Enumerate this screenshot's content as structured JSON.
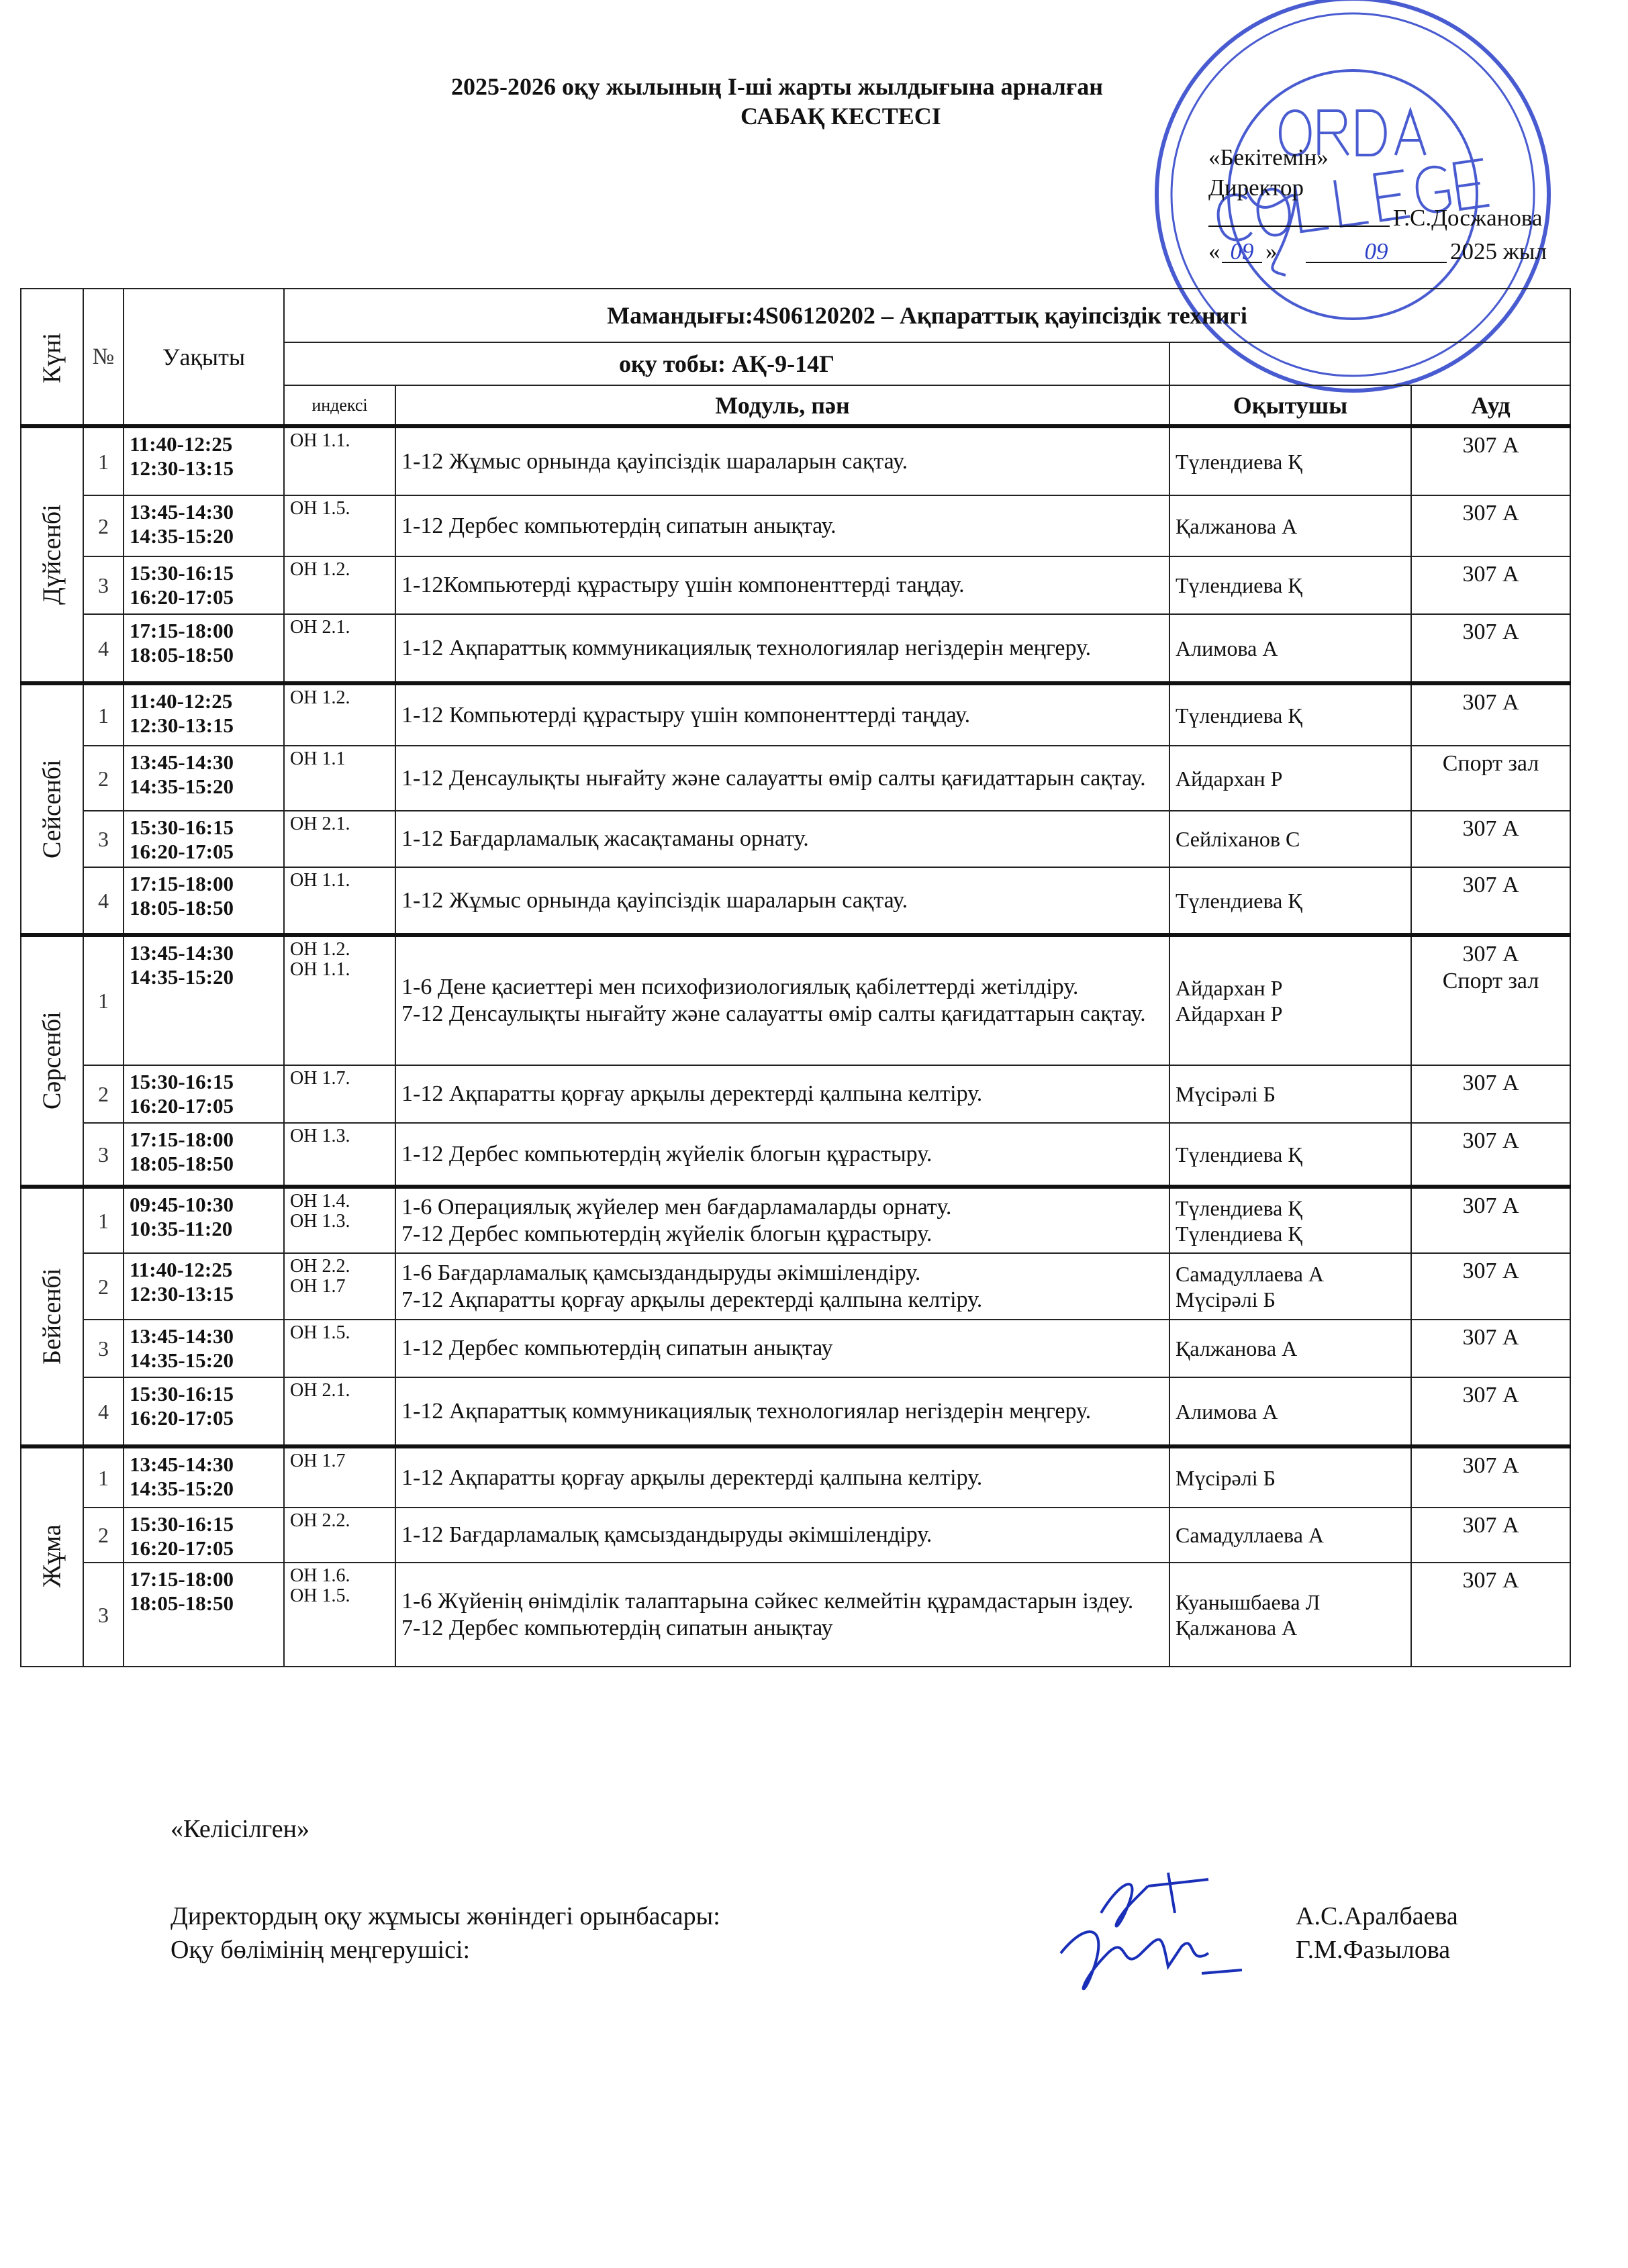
{
  "header": {
    "title_line1": "2025-2026 оқу жылының І-ші  жарты жылдығына арналған",
    "title_line2": "САБАҚ КЕСТЕСІ",
    "approval": {
      "approved": "«Бекітемін»",
      "position": "Директор",
      "name": "Г.С.Досжанова",
      "date_open": "«",
      "date_close": "»",
      "date_day": "09",
      "date_month": "09",
      "year": "2025 жыл"
    },
    "stamp_text": "ORDA COLLEGE",
    "stamp_color": "#2a3fc8"
  },
  "table": {
    "col_day": "Күні",
    "col_num": "№",
    "col_time": "Уақыты",
    "specialty": "Мамандығы:4S06120202 – Ақпараттық қауіпсіздік технигі",
    "group": "оқу тобы:  АҚ-9-14Г",
    "col_index": "индексі",
    "col_module": "Модуль, пән",
    "col_teacher": "Оқытушы",
    "col_room": "Ауд",
    "days": [
      {
        "name": "Дүйсенбі",
        "lessons": [
          {
            "n": "1",
            "time": [
              "11:40-12:25",
              "12:30-13:15"
            ],
            "index": [
              "ОН 1.1."
            ],
            "subject": [
              "1-12 Жұмыс орнында қауіпсіздік шараларын сақтау."
            ],
            "teacher": [
              "Түлендиева Қ"
            ],
            "room": [
              "307 А"
            ]
          },
          {
            "n": "2",
            "time": [
              "13:45-14:30",
              "14:35-15:20"
            ],
            "index": [
              "ОН 1.5."
            ],
            "subject": [
              "1-12 Дербес компьютердің сипатын анықтау."
            ],
            "teacher": [
              "Қалжанова А"
            ],
            "room": [
              "307 А"
            ]
          },
          {
            "n": "3",
            "time": [
              "15:30-16:15",
              "16:20-17:05"
            ],
            "index": [
              "ОН 1.2."
            ],
            "subject": [
              "1-12Компьютерді құрастыру үшін компоненттерді таңдау."
            ],
            "teacher": [
              "Түлендиева Қ"
            ],
            "room": [
              "307 А"
            ]
          },
          {
            "n": "4",
            "time": [
              "17:15-18:00",
              "18:05-18:50"
            ],
            "index": [
              "ОН 2.1."
            ],
            "subject": [
              "1-12 Ақпараттық коммуникациялық технологиялар негіздерін меңгеру."
            ],
            "teacher": [
              "Алимова А"
            ],
            "room": [
              "307 А"
            ]
          }
        ]
      },
      {
        "name": "Сейсенбі",
        "lessons": [
          {
            "n": "1",
            "time": [
              "11:40-12:25",
              "12:30-13:15"
            ],
            "index": [
              "ОН 1.2."
            ],
            "subject": [
              "1-12 Компьютерді құрастыру үшін компоненттерді таңдау."
            ],
            "teacher": [
              "Түлендиева Қ"
            ],
            "room": [
              "307 А"
            ]
          },
          {
            "n": "2",
            "time": [
              "13:45-14:30",
              "14:35-15:20"
            ],
            "index": [
              "ОН 1.1"
            ],
            "subject": [
              "1-12 Денсаулықты нығайту және салауатты өмір салты қағидаттарын сақтау."
            ],
            "teacher": [
              "Айдархан Р"
            ],
            "room": [
              "Спорт зал"
            ]
          },
          {
            "n": "3",
            "time": [
              "15:30-16:15",
              "16:20-17:05"
            ],
            "index": [
              "ОН 2.1."
            ],
            "subject": [
              "1-12 Бағдарламалық жасақтаманы орнату."
            ],
            "teacher": [
              "Сейліханов С"
            ],
            "room": [
              "307 А"
            ]
          },
          {
            "n": "4",
            "time": [
              "17:15-18:00",
              "18:05-18:50"
            ],
            "index": [
              "ОН 1.1."
            ],
            "subject": [
              "1-12 Жұмыс орнында қауіпсіздік шараларын сақтау."
            ],
            "teacher": [
              "Түлендиева Қ"
            ],
            "room": [
              "307 А"
            ]
          }
        ]
      },
      {
        "name": "Сәрсенбі",
        "lessons": [
          {
            "n": "1",
            "time": [
              "13:45-14:30",
              "14:35-15:20"
            ],
            "index": [
              "ОН 1.2.",
              "ОН 1.1."
            ],
            "subject": [
              "1-6 Дене қасиеттері мен психофизиологиялық қабілеттерді жетілдіру.",
              "7-12 Денсаулықты нығайту және салауатты өмір салты қағидаттарын сақтау."
            ],
            "teacher": [
              "Айдархан Р",
              "Айдархан Р"
            ],
            "room": [
              "307 А",
              "Спорт зал"
            ]
          },
          {
            "n": "2",
            "time": [
              "15:30-16:15",
              "16:20-17:05"
            ],
            "index": [
              "ОН 1.7."
            ],
            "subject": [
              "1-12 Ақпаратты  қорғау арқылы деректерді қалпына келтіру."
            ],
            "teacher": [
              "Мүсірәлі Б"
            ],
            "room": [
              "307 А"
            ]
          },
          {
            "n": "3",
            "time": [
              "17:15-18:00",
              "18:05-18:50"
            ],
            "index": [
              "ОН 1.3."
            ],
            "subject": [
              "1-12 Дербес  компьютердің жүйелік блогын құрастыру."
            ],
            "teacher": [
              "Түлендиева Қ"
            ],
            "room": [
              "307 А"
            ]
          }
        ]
      },
      {
        "name": "Бейсенбі",
        "lessons": [
          {
            "n": "1",
            "time": [
              "09:45-10:30",
              "10:35-11:20"
            ],
            "index": [
              "ОН 1.4.",
              "ОН 1.3."
            ],
            "subject": [
              "1-6 Операциялық жүйелер мен бағдарламаларды орнату.",
              "7-12 Дербес  компьютердің жүйелік блогын құрастыру."
            ],
            "teacher": [
              "Түлендиева Қ",
              "Түлендиева Қ"
            ],
            "room": [
              "307 А"
            ]
          },
          {
            "n": "2",
            "time": [
              "11:40-12:25",
              "12:30-13:15"
            ],
            "index": [
              "ОН 2.2.",
              "ОН 1.7"
            ],
            "subject": [
              "1-6 Бағдарламалық қамсыздандыруды әкімшілендіру.",
              "7-12 Ақпаратты  қорғау арқылы деректерді қалпына келтіру."
            ],
            "teacher": [
              "Самадуллаева А",
              "Мүсірәлі Б"
            ],
            "room": [
              "307 А"
            ]
          },
          {
            "n": "3",
            "time": [
              "13:45-14:30",
              "14:35-15:20"
            ],
            "index": [
              "ОН 1.5."
            ],
            "subject": [
              "1-12 Дербес компьютердің сипатын анықтау"
            ],
            "teacher": [
              "Қалжанова А"
            ],
            "room": [
              "307 А"
            ]
          },
          {
            "n": "4",
            "time": [
              "15:30-16:15",
              "16:20-17:05"
            ],
            "index": [
              "ОН 2.1."
            ],
            "subject": [
              "1-12 Ақпараттық коммуникациялық технологиялар негіздерін меңгеру."
            ],
            "teacher": [
              "Алимова  А"
            ],
            "room": [
              "307 А"
            ]
          }
        ]
      },
      {
        "name": "Жұма",
        "lessons": [
          {
            "n": "1",
            "time": [
              "13:45-14:30",
              "14:35-15:20"
            ],
            "index": [
              "ОН 1.7"
            ],
            "subject": [
              "1-12 Ақпаратты  қорғау арқылы деректерді қалпына келтіру."
            ],
            "teacher": [
              "Мүсірәлі Б"
            ],
            "room": [
              "307 А"
            ]
          },
          {
            "n": "2",
            "time": [
              "15:30-16:15",
              "16:20-17:05"
            ],
            "index": [
              "ОН 2.2."
            ],
            "subject": [
              "1-12 Бағдарламалық қамсыздандыруды әкімшілендіру."
            ],
            "teacher": [
              "Самадуллаева А"
            ],
            "room": [
              "307 А"
            ]
          },
          {
            "n": "3",
            "time": [
              "17:15-18:00",
              "18:05-18:50"
            ],
            "index": [
              "ОН 1.6.",
              "ОН 1.5."
            ],
            "subject": [
              "1-6 Жүйенің өнімділік талаптарына сәйкес  келмейтін құрамдастарын іздеу.",
              "7-12 Дербес компьютердің сипатын анықтау"
            ],
            "teacher": [
              "Куанышбаева Л",
              "Қалжанова А"
            ],
            "room": [
              "307 А"
            ]
          }
        ]
      }
    ]
  },
  "footer": {
    "agreed": "«Келісілген»",
    "signatories": [
      {
        "position": "Директордың оқу жұмысы  жөніндегі орынбасары:",
        "name": "А.С.Аралбаева"
      },
      {
        "position": "Оқу бөлімінің меңгерушісі:",
        "name": "Г.М.Фазылова"
      }
    ]
  }
}
